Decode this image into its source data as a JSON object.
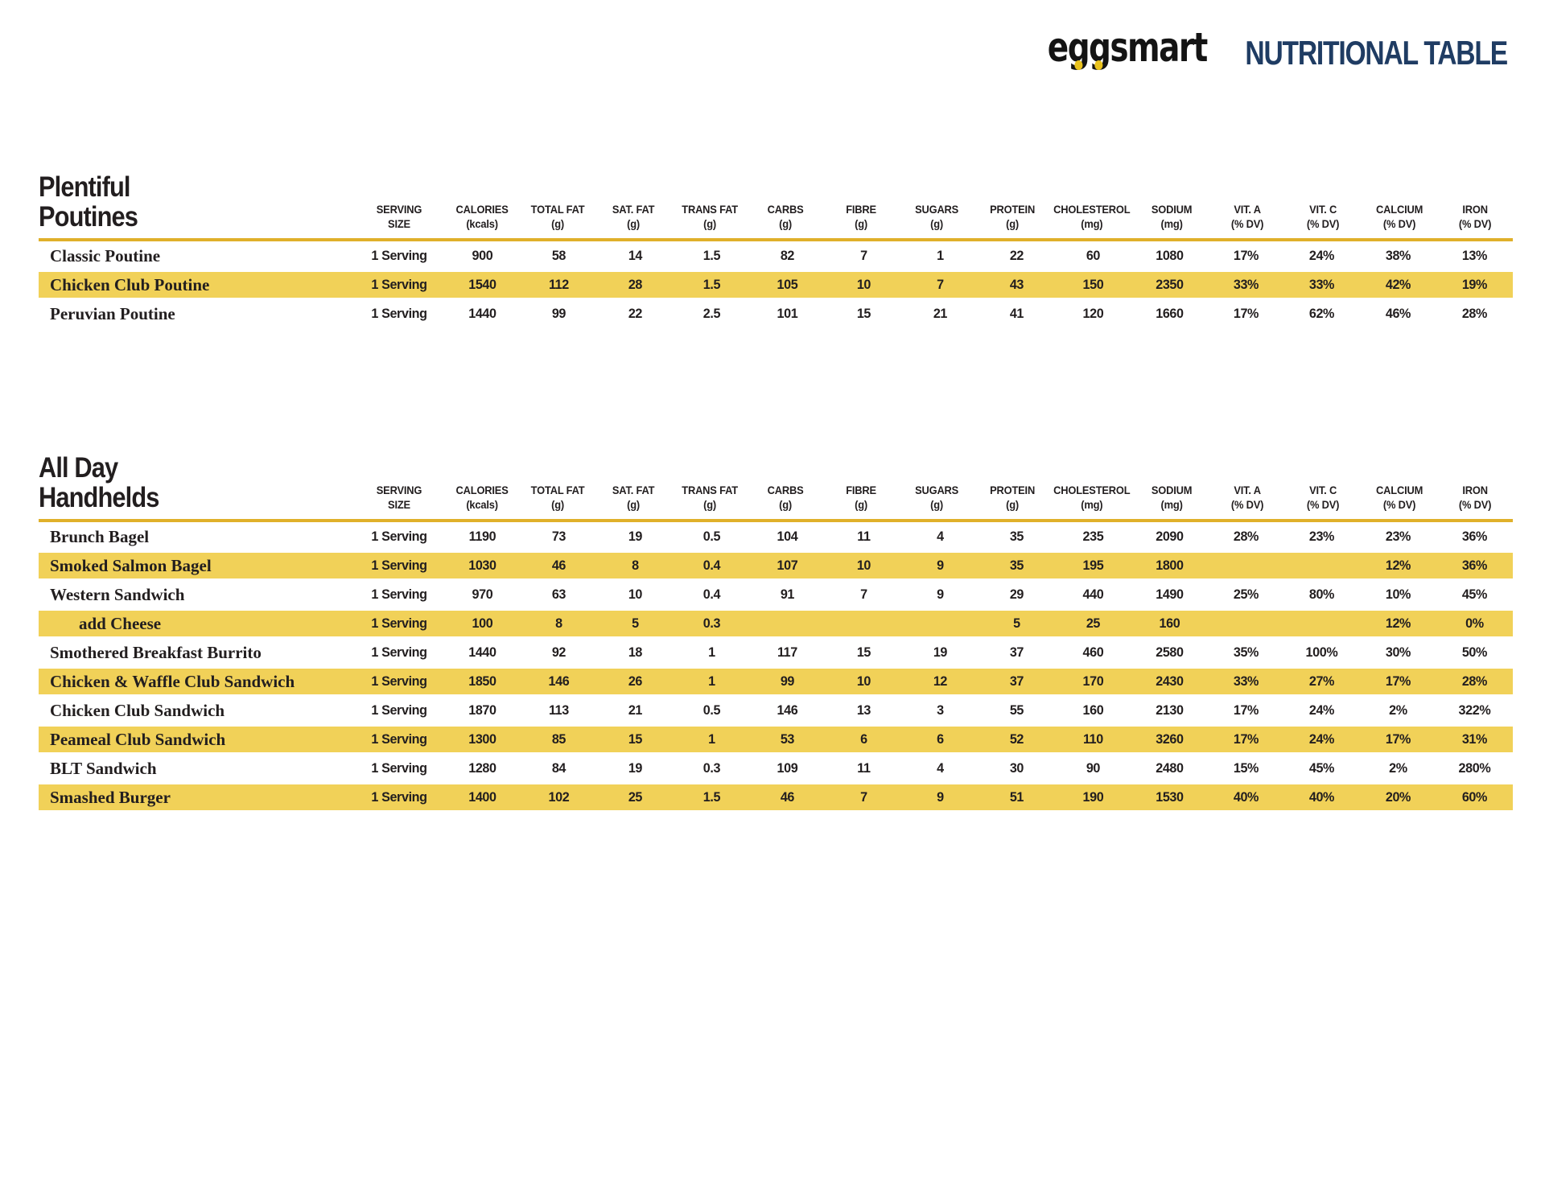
{
  "brand": {
    "logo_text": "eggsmart",
    "page_title": "NUTRITIONAL TABLE"
  },
  "colors": {
    "highlight_yellow": "#f1d158",
    "rule_gold": "#e0b02a",
    "title_navy": "#1f3c63",
    "yolk_yellow": "#eac31e",
    "text_black": "#221e1f"
  },
  "columns": [
    {
      "l1": "SERVING",
      "l2": "SIZE"
    },
    {
      "l1": "CALORIES",
      "l2": "(kcals)"
    },
    {
      "l1": "TOTAL FAT",
      "l2": "(g)"
    },
    {
      "l1": "SAT. FAT",
      "l2": "(g)"
    },
    {
      "l1": "TRANS FAT",
      "l2": "(g)"
    },
    {
      "l1": "CARBS",
      "l2": "(g)"
    },
    {
      "l1": "FIBRE",
      "l2": "(g)"
    },
    {
      "l1": "SUGARS",
      "l2": "(g)"
    },
    {
      "l1": "PROTEIN",
      "l2": "(g)"
    },
    {
      "l1": "CHOLESTEROL",
      "l2": "(mg)"
    },
    {
      "l1": "SODIUM",
      "l2": "(mg)"
    },
    {
      "l1": "VIT. A",
      "l2": "(% DV)"
    },
    {
      "l1": "VIT. C",
      "l2": "(% DV)"
    },
    {
      "l1": "CALCIUM",
      "l2": "(% DV)"
    },
    {
      "l1": "IRON",
      "l2": "(% DV)"
    }
  ],
  "sections": [
    {
      "title_line1": "Plentiful",
      "title_line2": "Poutines",
      "rows": [
        {
          "name": "Classic Poutine",
          "highlight": false,
          "indent": false,
          "values": [
            "1 Serving",
            "900",
            "58",
            "14",
            "1.5",
            "82",
            "7",
            "1",
            "22",
            "60",
            "1080",
            "17%",
            "24%",
            "38%",
            "13%"
          ]
        },
        {
          "name": "Chicken Club Poutine",
          "highlight": true,
          "indent": false,
          "values": [
            "1 Serving",
            "1540",
            "112",
            "28",
            "1.5",
            "105",
            "10",
            "7",
            "43",
            "150",
            "2350",
            "33%",
            "33%",
            "42%",
            "19%"
          ]
        },
        {
          "name": "Peruvian Poutine",
          "highlight": false,
          "indent": false,
          "values": [
            "1 Serving",
            "1440",
            "99",
            "22",
            "2.5",
            "101",
            "15",
            "21",
            "41",
            "120",
            "1660",
            "17%",
            "62%",
            "46%",
            "28%"
          ]
        }
      ]
    },
    {
      "title_line1": "All Day",
      "title_line2": "Handhelds",
      "rows": [
        {
          "name": "Brunch Bagel",
          "highlight": false,
          "indent": false,
          "values": [
            "1 Serving",
            "1190",
            "73",
            "19",
            "0.5",
            "104",
            "11",
            "4",
            "35",
            "235",
            "2090",
            "28%",
            "23%",
            "23%",
            "36%"
          ]
        },
        {
          "name": "Smoked Salmon Bagel",
          "highlight": true,
          "indent": false,
          "values": [
            "1 Serving",
            "1030",
            "46",
            "8",
            "0.4",
            "107",
            "10",
            "9",
            "35",
            "195",
            "1800",
            "",
            "",
            "12%",
            "36%"
          ]
        },
        {
          "name": "Western Sandwich",
          "highlight": false,
          "indent": false,
          "values": [
            "1 Serving",
            "970",
            "63",
            "10",
            "0.4",
            "91",
            "7",
            "9",
            "29",
            "440",
            "1490",
            "25%",
            "80%",
            "10%",
            "45%"
          ]
        },
        {
          "name": "add Cheese",
          "highlight": true,
          "indent": true,
          "values": [
            "1 Serving",
            "100",
            "8",
            "5",
            "0.3",
            "",
            "",
            "",
            "5",
            "25",
            "160",
            "",
            "",
            "12%",
            "0%"
          ]
        },
        {
          "name": "Smothered Breakfast Burrito",
          "highlight": false,
          "indent": false,
          "values": [
            "1 Serving",
            "1440",
            "92",
            "18",
            "1",
            "117",
            "15",
            "19",
            "37",
            "460",
            "2580",
            "35%",
            "100%",
            "30%",
            "50%"
          ]
        },
        {
          "name": "Chicken & Waffle Club Sandwich",
          "highlight": true,
          "indent": false,
          "values": [
            "1 Serving",
            "1850",
            "146",
            "26",
            "1",
            "99",
            "10",
            "12",
            "37",
            "170",
            "2430",
            "33%",
            "27%",
            "17%",
            "28%"
          ]
        },
        {
          "name": "Chicken Club Sandwich",
          "highlight": false,
          "indent": false,
          "values": [
            "1 Serving",
            "1870",
            "113",
            "21",
            "0.5",
            "146",
            "13",
            "3",
            "55",
            "160",
            "2130",
            "17%",
            "24%",
            "2%",
            "322%"
          ]
        },
        {
          "name": "Peameal Club Sandwich",
          "highlight": true,
          "indent": false,
          "values": [
            "1 Serving",
            "1300",
            "85",
            "15",
            "1",
            "53",
            "6",
            "6",
            "52",
            "110",
            "3260",
            "17%",
            "24%",
            "17%",
            "31%"
          ]
        },
        {
          "name": "BLT Sandwich",
          "highlight": false,
          "indent": false,
          "values": [
            "1 Serving",
            "1280",
            "84",
            "19",
            "0.3",
            "109",
            "11",
            "4",
            "30",
            "90",
            "2480",
            "15%",
            "45%",
            "2%",
            "280%"
          ]
        },
        {
          "name": "Smashed Burger",
          "highlight": true,
          "indent": false,
          "values": [
            "1 Serving",
            "1400",
            "102",
            "25",
            "1.5",
            "46",
            "7",
            "9",
            "51",
            "190",
            "1530",
            "40%",
            "40%",
            "20%",
            "60%"
          ]
        }
      ]
    }
  ]
}
